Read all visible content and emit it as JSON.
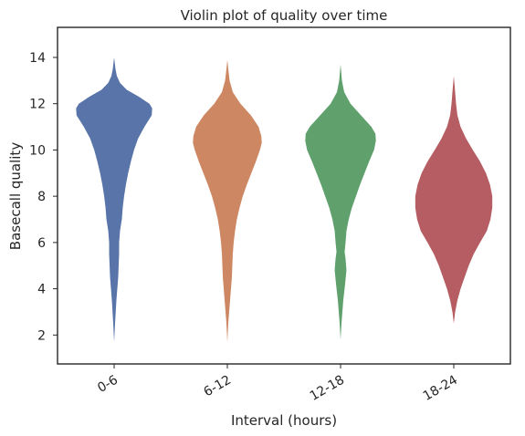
{
  "chart_data": {
    "type": "violin",
    "title": "Violin plot of quality over time",
    "xlabel": "Interval (hours)",
    "ylabel": "Basecall quality",
    "categories": [
      "0-6",
      "6-12",
      "12-18",
      "18-24"
    ],
    "ylim": [
      0.75,
      15.3
    ],
    "yticks": [
      2,
      4,
      6,
      8,
      10,
      12,
      14
    ],
    "grid": false,
    "legend": "none",
    "colors": [
      "#5874a8",
      "#cd8762",
      "#5fa06d",
      "#b55d62"
    ],
    "series": [
      {
        "category": "0-6",
        "y_range": [
          1.7,
          14.0
        ],
        "density_profile": [
          [
            1.7,
            0.0
          ],
          [
            2.5,
            0.02
          ],
          [
            3.5,
            0.05
          ],
          [
            4.5,
            0.09
          ],
          [
            5.5,
            0.11
          ],
          [
            6.0,
            0.11
          ],
          [
            6.5,
            0.13
          ],
          [
            7.0,
            0.17
          ],
          [
            7.5,
            0.19
          ],
          [
            8.0,
            0.22
          ],
          [
            8.5,
            0.26
          ],
          [
            9.0,
            0.31
          ],
          [
            9.5,
            0.37
          ],
          [
            10.0,
            0.44
          ],
          [
            10.5,
            0.53
          ],
          [
            11.0,
            0.67
          ],
          [
            11.5,
            0.83
          ],
          [
            11.8,
            0.84
          ],
          [
            12.0,
            0.78
          ],
          [
            12.3,
            0.55
          ],
          [
            12.6,
            0.28
          ],
          [
            12.9,
            0.13
          ],
          [
            13.2,
            0.06
          ],
          [
            13.5,
            0.03
          ],
          [
            14.0,
            0.0
          ]
        ]
      },
      {
        "category": "6-12",
        "y_range": [
          1.7,
          13.9
        ],
        "density_profile": [
          [
            1.7,
            0.0
          ],
          [
            2.5,
            0.02
          ],
          [
            3.5,
            0.06
          ],
          [
            4.5,
            0.1
          ],
          [
            5.5,
            0.12
          ],
          [
            6.0,
            0.14
          ],
          [
            6.5,
            0.17
          ],
          [
            7.0,
            0.21
          ],
          [
            7.5,
            0.27
          ],
          [
            8.0,
            0.34
          ],
          [
            8.5,
            0.43
          ],
          [
            9.0,
            0.53
          ],
          [
            9.5,
            0.63
          ],
          [
            10.0,
            0.72
          ],
          [
            10.3,
            0.76
          ],
          [
            10.6,
            0.75
          ],
          [
            11.0,
            0.69
          ],
          [
            11.5,
            0.52
          ],
          [
            12.0,
            0.29
          ],
          [
            12.5,
            0.12
          ],
          [
            13.0,
            0.05
          ],
          [
            13.5,
            0.02
          ],
          [
            13.9,
            0.0
          ]
        ]
      },
      {
        "category": "12-18",
        "y_range": [
          1.8,
          13.7
        ],
        "density_profile": [
          [
            1.8,
            0.0
          ],
          [
            2.5,
            0.02
          ],
          [
            3.5,
            0.06
          ],
          [
            4.2,
            0.1
          ],
          [
            4.8,
            0.13
          ],
          [
            5.3,
            0.11
          ],
          [
            5.6,
            0.09
          ],
          [
            6.0,
            0.11
          ],
          [
            6.5,
            0.13
          ],
          [
            7.0,
            0.18
          ],
          [
            7.5,
            0.25
          ],
          [
            8.0,
            0.34
          ],
          [
            8.5,
            0.43
          ],
          [
            9.0,
            0.53
          ],
          [
            9.5,
            0.63
          ],
          [
            10.0,
            0.74
          ],
          [
            10.4,
            0.78
          ],
          [
            10.7,
            0.77
          ],
          [
            11.0,
            0.68
          ],
          [
            11.5,
            0.45
          ],
          [
            12.0,
            0.22
          ],
          [
            12.5,
            0.08
          ],
          [
            13.0,
            0.03
          ],
          [
            13.7,
            0.0
          ]
        ]
      },
      {
        "category": "18-24",
        "y_range": [
          2.5,
          13.2
        ],
        "density_profile": [
          [
            2.5,
            0.0
          ],
          [
            3.0,
            0.03
          ],
          [
            3.5,
            0.08
          ],
          [
            4.0,
            0.15
          ],
          [
            4.5,
            0.24
          ],
          [
            5.0,
            0.33
          ],
          [
            5.5,
            0.44
          ],
          [
            6.0,
            0.58
          ],
          [
            6.5,
            0.73
          ],
          [
            7.0,
            0.81
          ],
          [
            7.5,
            0.85
          ],
          [
            8.0,
            0.85
          ],
          [
            8.5,
            0.8
          ],
          [
            9.0,
            0.71
          ],
          [
            9.5,
            0.58
          ],
          [
            10.0,
            0.42
          ],
          [
            10.5,
            0.27
          ],
          [
            11.0,
            0.15
          ],
          [
            11.5,
            0.08
          ],
          [
            12.0,
            0.05
          ],
          [
            12.5,
            0.03
          ],
          [
            13.2,
            0.0
          ]
        ]
      }
    ]
  }
}
